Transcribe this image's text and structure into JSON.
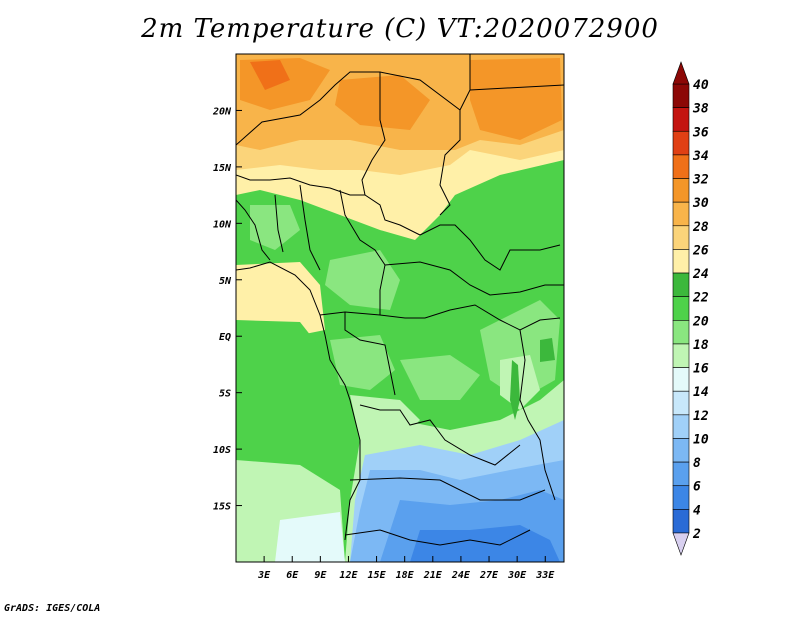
{
  "title": "2m Temperature (C) VT:2020072900",
  "credit": "GrADS: IGES/COLA",
  "map": {
    "lon_range": [
      0,
      35
    ],
    "lat_range": [
      -20,
      25
    ],
    "lon_ticks": [
      "3E",
      "6E",
      "9E",
      "12E",
      "15E",
      "18E",
      "21E",
      "24E",
      "27E",
      "30E",
      "33E"
    ],
    "lon_tick_values": [
      3,
      6,
      9,
      12,
      15,
      18,
      21,
      24,
      27,
      30,
      33
    ],
    "lat_ticks": [
      "20N",
      "15N",
      "10N",
      "5N",
      "EQ",
      "5S",
      "10S",
      "15S"
    ],
    "lat_tick_values": [
      20,
      15,
      10,
      5,
      0,
      -5,
      -10,
      -15
    ]
  },
  "colorbar": {
    "levels": [
      "2",
      "4",
      "6",
      "8",
      "10",
      "12",
      "14",
      "16",
      "18",
      "20",
      "22",
      "24",
      "26",
      "28",
      "30",
      "32",
      "34",
      "36",
      "38",
      "40"
    ],
    "colors": [
      "#1e2a8c",
      "#1c4fb8",
      "#2a6bd6",
      "#3c86e6",
      "#5aa0ee",
      "#7cb8f4",
      "#a0d0f8",
      "#c8e8fb",
      "#e4fafa",
      "#c0f5b4",
      "#8ae680",
      "#4ed24a",
      "#3cb83c",
      "#fff0a8",
      "#fbd47a",
      "#f8b44a",
      "#f49628",
      "#f07018",
      "#e04014",
      "#c41410",
      "#8c0806"
    ],
    "top_color": "#8c0806",
    "bottom_color": "#d8d0f0"
  }
}
